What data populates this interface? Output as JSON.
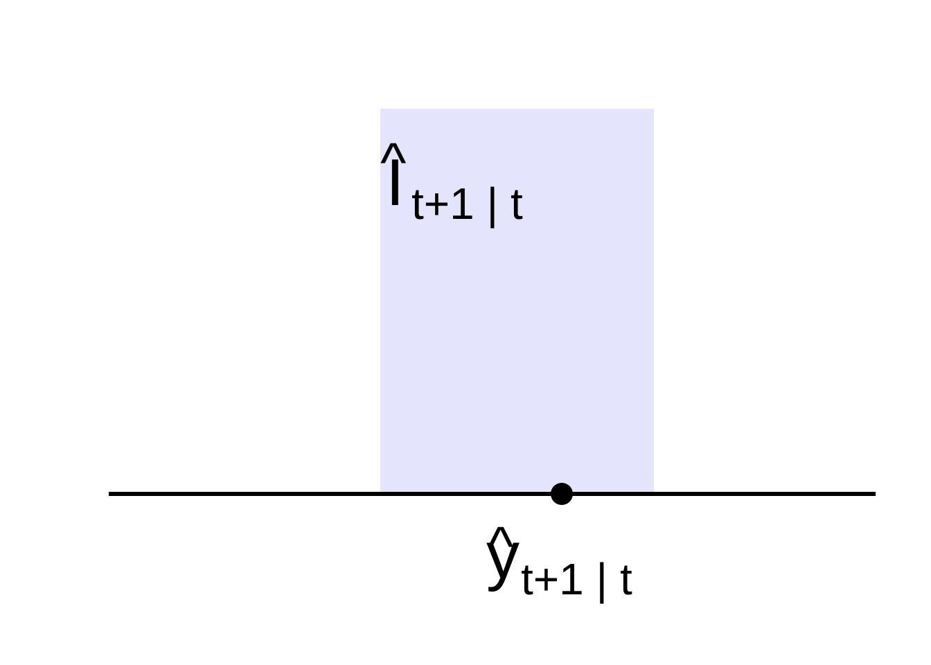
{
  "diagram": {
    "interval_label": {
      "symbol": "I",
      "hat": "^",
      "subscript": "t+1 | t"
    },
    "point_label": {
      "symbol": "y",
      "hat": "^",
      "subscript": "t+1 | t"
    },
    "colors": {
      "interval_fill": "#e4e4fc",
      "axis": "#000000",
      "point": "#000000",
      "background": "#ffffff"
    }
  }
}
